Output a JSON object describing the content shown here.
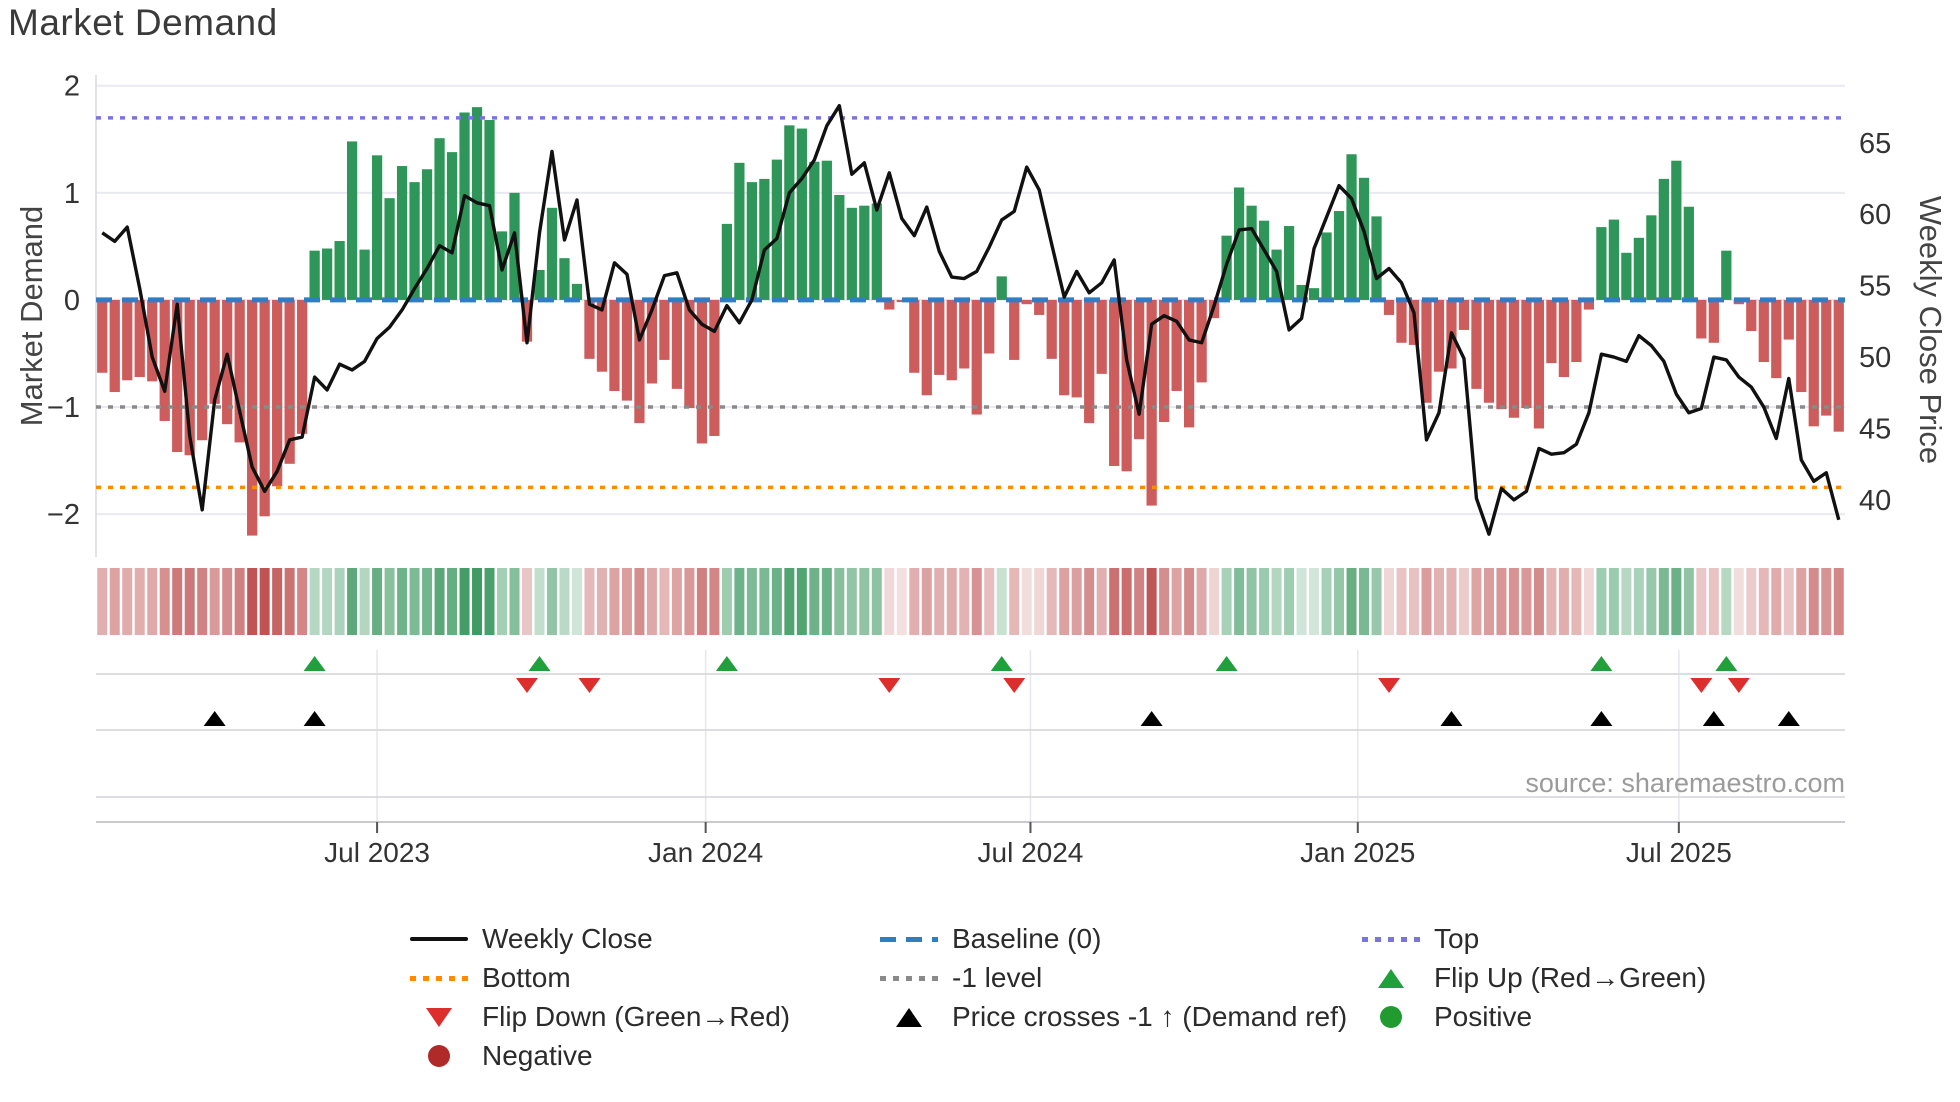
{
  "header": {
    "title": "Market Demand"
  },
  "chart_data": {
    "type": "bar",
    "title": "Market Demand",
    "ylabel_left": "Market Demand",
    "ylabel_right": "Weekly Close Price",
    "source": "source: sharemaestro.com",
    "grid": true,
    "legend_position": "bottom",
    "y_left_ticks": [
      {
        "label": "2",
        "value": 2
      },
      {
        "label": "1",
        "value": 1
      },
      {
        "label": "0",
        "value": 0
      },
      {
        "label": "−1",
        "value": -1
      },
      {
        "label": "−2",
        "value": -2
      }
    ],
    "y_right_ticks": [
      {
        "label": "65",
        "value": 65
      },
      {
        "label": "60",
        "value": 60
      },
      {
        "label": "55",
        "value": 55
      },
      {
        "label": "50",
        "value": 50
      },
      {
        "label": "45",
        "value": 45
      },
      {
        "label": "40",
        "value": 40
      }
    ],
    "x_ticks": [
      {
        "label": "Jul 2023",
        "week": 22.0
      },
      {
        "label": "Jan 2024",
        "week": 48.3
      },
      {
        "label": "Jul 2024",
        "week": 74.3
      },
      {
        "label": "Jan 2025",
        "week": 100.5
      },
      {
        "label": "Jul 2025",
        "week": 126.2
      }
    ],
    "ylim_left": [
      -2.4,
      2.1
    ],
    "reference_lines": {
      "baseline": 0,
      "top": 1.7,
      "bottom": -1.75,
      "minus1": -1
    },
    "right_axis": {
      "price_at_zero_demand": 54,
      "price_per_demand_unit": 7.5
    },
    "series": [
      {
        "name": "Market Demand (weekly bars)",
        "type": "bar",
        "values": [
          -0.68,
          -0.86,
          -0.75,
          -0.72,
          -0.76,
          -1.13,
          -1.42,
          -1.45,
          -1.31,
          -0.97,
          -1.16,
          -1.33,
          -2.2,
          -2.02,
          -1.74,
          -1.53,
          -1.25,
          0.46,
          0.48,
          0.55,
          1.48,
          0.47,
          1.35,
          0.95,
          1.25,
          1.1,
          1.22,
          1.51,
          1.38,
          1.75,
          1.8,
          1.68,
          0.64,
          1.0,
          -0.39,
          0.28,
          0.86,
          0.39,
          0.15,
          -0.55,
          -0.67,
          -0.85,
          -0.94,
          -1.15,
          -0.78,
          -0.56,
          -0.83,
          -1.01,
          -1.34,
          -1.27,
          0.71,
          1.28,
          1.1,
          1.13,
          1.31,
          1.63,
          1.6,
          1.29,
          1.3,
          0.98,
          0.86,
          0.88,
          0.9,
          -0.09,
          -0.02,
          -0.68,
          -0.89,
          -0.7,
          -0.75,
          -0.64,
          -1.07,
          -0.5,
          0.22,
          -0.56,
          -0.04,
          -0.14,
          -0.55,
          -0.89,
          -0.91,
          -1.15,
          -0.69,
          -1.55,
          -1.6,
          -1.3,
          -1.92,
          -1.14,
          -0.85,
          -1.19,
          -0.77,
          -0.17,
          0.6,
          1.05,
          0.88,
          0.74,
          0.47,
          0.69,
          0.14,
          0.11,
          0.63,
          0.83,
          1.36,
          1.14,
          0.78,
          -0.14,
          -0.4,
          -0.42,
          -0.96,
          -0.67,
          -0.64,
          -0.28,
          -0.83,
          -0.96,
          -1.02,
          -1.1,
          -1.01,
          -1.2,
          -0.59,
          -0.72,
          -0.58,
          -0.09,
          0.68,
          0.75,
          0.44,
          0.58,
          0.79,
          1.13,
          1.3,
          0.87,
          -0.36,
          -0.4,
          0.46,
          -0.04,
          -0.29,
          -0.58,
          -0.73,
          -0.37,
          -0.86,
          -1.18,
          -1.08,
          -1.23
        ]
      },
      {
        "name": "Weekly Close",
        "type": "line",
        "values": [
          58.7,
          58.1,
          59.1,
          54.8,
          50.0,
          47.6,
          53.7,
          44.5,
          39.3,
          47.0,
          50.2,
          46.2,
          42.3,
          40.6,
          42.0,
          44.2,
          44.4,
          48.6,
          47.7,
          49.5,
          49.1,
          49.7,
          51.3,
          52.1,
          53.3,
          54.8,
          56.2,
          57.8,
          57.3,
          61.3,
          60.8,
          60.6,
          56.1,
          58.7,
          51.0,
          58.7,
          64.4,
          58.2,
          61.0,
          53.7,
          53.3,
          56.6,
          55.8,
          51.2,
          53.3,
          55.7,
          55.9,
          53.3,
          52.3,
          51.8,
          53.6,
          52.4,
          54.0,
          57.5,
          58.3,
          61.5,
          62.5,
          63.8,
          66.2,
          67.6,
          62.8,
          63.6,
          60.3,
          62.9,
          59.7,
          58.5,
          60.5,
          57.4,
          55.6,
          55.5,
          56.0,
          57.7,
          59.6,
          60.2,
          63.3,
          61.7,
          57.9,
          54.2,
          56.0,
          54.5,
          55.2,
          56.8,
          49.8,
          46.0,
          52.3,
          52.9,
          52.5,
          51.2,
          51.0,
          53.6,
          56.5,
          58.9,
          59.0,
          57.5,
          56.0,
          51.9,
          52.7,
          57.6,
          59.8,
          62.0,
          61.1,
          58.8,
          55.5,
          56.2,
          55.2,
          53.1,
          44.2,
          46.1,
          51.7,
          49.9,
          40.1,
          37.6,
          40.8,
          40.0,
          40.6,
          43.6,
          43.2,
          43.3,
          43.9,
          46.1,
          50.2,
          50.0,
          49.7,
          51.5,
          50.8,
          49.7,
          47.4,
          46.1,
          46.4,
          50.0,
          49.8,
          48.6,
          47.9,
          46.5,
          44.3,
          48.5,
          42.8,
          41.3,
          41.9,
          38.6
        ]
      }
    ],
    "markers": {
      "flip_up_weeks": [
        18,
        36,
        51,
        73,
        91,
        121,
        131
      ],
      "flip_down_weeks": [
        35,
        40,
        64,
        74,
        104,
        129,
        132
      ],
      "price_cross_weeks": [
        10,
        18,
        85,
        109,
        121,
        130,
        136
      ]
    },
    "colors": {
      "positive_bar": "#2e9658",
      "negative_bar": "#cd5c5c",
      "price_line": "#111111",
      "baseline": "#2d7fc1",
      "top_line": "#7b74e0",
      "bottom_line": "#ff8c00",
      "minus1_line": "#8a8a8a",
      "flip_up": "#1fa03a",
      "flip_down": "#dd2e2e",
      "price_cross": "#000000",
      "grid": "#e9e9f2",
      "heat_positive": "#34945a",
      "heat_negative": "#c05454"
    }
  },
  "legend": {
    "items": [
      {
        "row": 0,
        "col": 0,
        "swatch": "line",
        "label": "Weekly Close"
      },
      {
        "row": 0,
        "col": 1,
        "swatch": "dash-blue",
        "label": "Baseline (0)"
      },
      {
        "row": 0,
        "col": 2,
        "swatch": "dot-purple",
        "label": "Top"
      },
      {
        "row": 1,
        "col": 0,
        "swatch": "dot-orange",
        "label": "Bottom"
      },
      {
        "row": 1,
        "col": 1,
        "swatch": "dot-gray",
        "label": "-1 level"
      },
      {
        "row": 1,
        "col": 2,
        "swatch": "tri-up-green",
        "label": "Flip Up (Red→Green)"
      },
      {
        "row": 2,
        "col": 0,
        "swatch": "tri-down-red",
        "label": "Flip Down (Green→Red)"
      },
      {
        "row": 2,
        "col": 1,
        "swatch": "tri-up-black",
        "label": "Price crosses -1 ↑ (Demand ref)"
      },
      {
        "row": 2,
        "col": 2,
        "swatch": "circle-green",
        "label": "Positive"
      },
      {
        "row": 3,
        "col": 0,
        "swatch": "circle-darkred",
        "label": "Negative"
      }
    ]
  }
}
